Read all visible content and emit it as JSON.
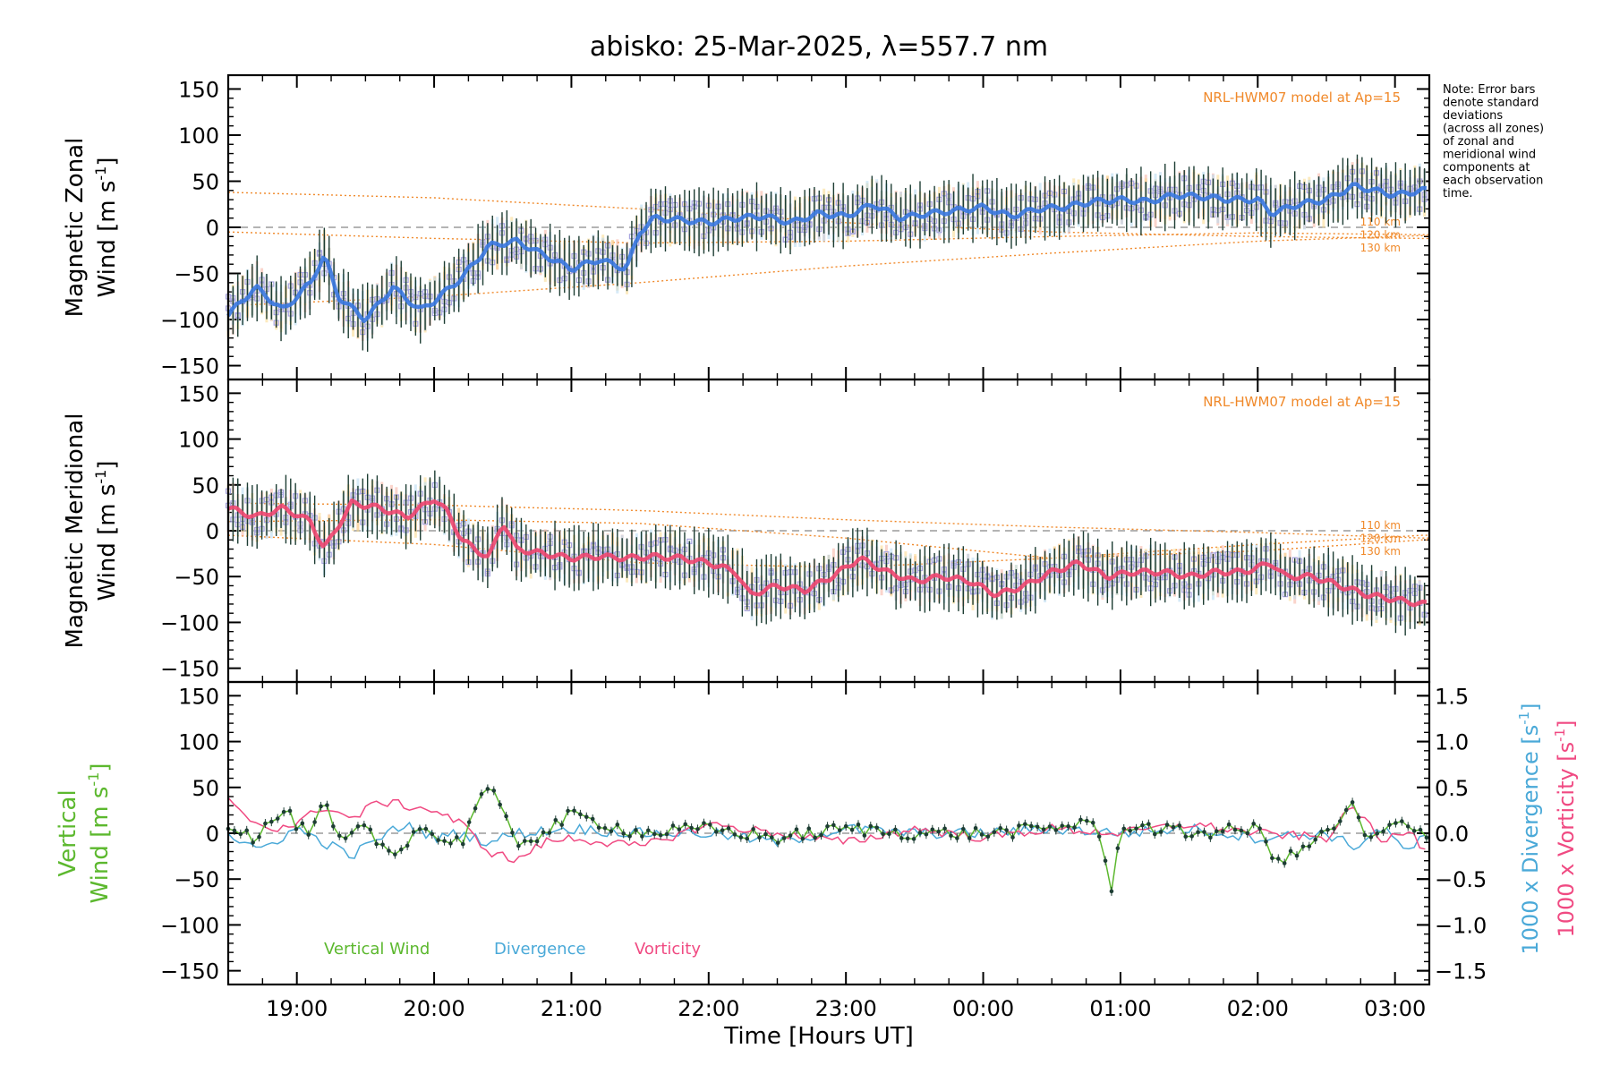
{
  "title": "abisko: 25-Mar-2025, λ=557.7 nm",
  "note_lines": [
    "Note: Error bars",
    "denote standard",
    "deviations",
    "(across all zones)",
    "of zonal and",
    "meridional wind",
    "components at",
    "each observation",
    "time."
  ],
  "colors": {
    "zonal": "#3a78e0",
    "meridional": "#f04670",
    "vertical": "#5cb82e",
    "divergence": "#4aa9d8",
    "vorticity": "#f04a82",
    "model": "#f0892a",
    "scatter": "#a9a6e0",
    "errorbar": "#1d3d33"
  },
  "chart_data": [
    {
      "type": "line",
      "panel": "zonal",
      "ylabel_line1": "Magnetic Zonal",
      "ylabel_line2": "Wind",
      "ylabel_unit": "[m s",
      "ylabel_sup": "-1",
      "ylabel_close": "]",
      "ylim": [
        -165,
        165
      ],
      "yticks": [
        -150,
        -100,
        -50,
        0,
        50,
        100,
        150
      ],
      "model_label": "NRL-HWM07 model at Ap=15",
      "model_altitudes": [
        "110 km",
        "120 km",
        "130 km"
      ],
      "model_curves": [
        {
          "x": [
            18.5,
            20.0,
            21.5,
            23.0,
            24.5,
            26.0,
            27.2
          ],
          "y": [
            38,
            32,
            20,
            5,
            -5,
            -10,
            -12
          ]
        },
        {
          "x": [
            18.5,
            20.0,
            21.5,
            23.0,
            24.5,
            26.0,
            27.2
          ],
          "y": [
            -5,
            -12,
            -17,
            -15,
            -10,
            -6,
            -8
          ]
        },
        {
          "x": [
            18.5,
            20.0,
            21.5,
            23.0,
            24.5,
            26.0,
            27.2
          ],
          "y": [
            -85,
            -75,
            -60,
            -42,
            -28,
            -15,
            -9
          ]
        }
      ],
      "series": [
        {
          "name": "zonal wind",
          "x": [
            18.5,
            18.7,
            18.9,
            19.1,
            19.2,
            19.3,
            19.5,
            19.7,
            19.9,
            20.0,
            20.2,
            20.4,
            20.6,
            20.8,
            21.0,
            21.2,
            21.4,
            21.5,
            21.6,
            21.8,
            22.0,
            22.2,
            22.4,
            22.6,
            22.8,
            23.0,
            23.2,
            23.4,
            23.6,
            23.8,
            24.0,
            24.2,
            24.4,
            24.6,
            24.8,
            25.0,
            25.2,
            25.4,
            25.6,
            25.8,
            26.0,
            26.1,
            26.3,
            26.5,
            26.7,
            27.0,
            27.2
          ],
          "y": [
            -95,
            -65,
            -90,
            -60,
            -30,
            -75,
            -100,
            -65,
            -90,
            -80,
            -55,
            -20,
            -15,
            -30,
            -45,
            -35,
            -45,
            -5,
            10,
            8,
            5,
            10,
            12,
            5,
            15,
            12,
            25,
            10,
            15,
            18,
            22,
            12,
            20,
            22,
            28,
            30,
            28,
            35,
            33,
            30,
            30,
            15,
            25,
            30,
            45,
            35,
            40
          ]
        }
      ]
    },
    {
      "type": "line",
      "panel": "meridional",
      "ylabel_line1": "Magnetic Meridional",
      "ylabel_line2": "Wind",
      "ylabel_unit": "[m s",
      "ylabel_sup": "-1",
      "ylabel_close": "]",
      "ylim": [
        -165,
        165
      ],
      "yticks": [
        -150,
        -100,
        -50,
        0,
        50,
        100,
        150
      ],
      "model_label": "NRL-HWM07 model at Ap=15",
      "model_altitudes": [
        "110 km",
        "120 km",
        "130 km"
      ],
      "model_curves": [
        {
          "x": [
            18.5,
            20.0,
            21.5,
            23.0,
            24.5,
            26.0,
            27.2
          ],
          "y": [
            30,
            28,
            22,
            12,
            4,
            -2,
            -8
          ]
        },
        {
          "x": [
            18.5,
            20.0,
            21.5,
            23.0,
            24.5,
            26.0,
            27.2
          ],
          "y": [
            10,
            12,
            8,
            -8,
            -30,
            -22,
            -10
          ]
        },
        {
          "x": [
            18.5,
            20.0,
            21.5,
            23.0,
            24.5,
            26.0,
            27.2
          ],
          "y": [
            -5,
            -15,
            -35,
            -40,
            -30,
            -15,
            -5
          ]
        }
      ],
      "series": [
        {
          "name": "meridional wind",
          "x": [
            18.5,
            18.7,
            18.9,
            19.1,
            19.2,
            19.4,
            19.6,
            19.8,
            20.0,
            20.1,
            20.2,
            20.4,
            20.5,
            20.6,
            20.8,
            21.0,
            21.2,
            21.4,
            21.6,
            21.8,
            22.0,
            22.2,
            22.3,
            22.5,
            22.7,
            22.9,
            23.1,
            23.3,
            23.5,
            23.7,
            23.9,
            24.1,
            24.3,
            24.5,
            24.7,
            24.9,
            25.1,
            25.3,
            25.5,
            25.7,
            25.9,
            26.1,
            26.2,
            26.4,
            26.6,
            26.8,
            27.0,
            27.2
          ],
          "y": [
            25,
            15,
            25,
            10,
            -20,
            30,
            25,
            15,
            35,
            20,
            -10,
            -30,
            10,
            -20,
            -25,
            -30,
            -28,
            -30,
            -28,
            -30,
            -35,
            -45,
            -70,
            -60,
            -65,
            -50,
            -30,
            -45,
            -55,
            -50,
            -55,
            -70,
            -60,
            -45,
            -35,
            -50,
            -45,
            -45,
            -50,
            -45,
            -45,
            -35,
            -50,
            -50,
            -60,
            -70,
            -75,
            -80
          ]
        }
      ]
    },
    {
      "type": "line",
      "panel": "vertical",
      "ylabel_line1": "Vertical",
      "ylabel_line2": "Wind",
      "ylabel_unit": "[m s",
      "ylabel_sup": "-1",
      "ylabel_close": "]",
      "ylim": [
        -165,
        165
      ],
      "yticks": [
        -150,
        -100,
        -50,
        0,
        50,
        100,
        150
      ],
      "y2lim": [
        -1.65,
        1.65
      ],
      "y2ticks": [
        -1.5,
        -1.0,
        -0.5,
        0.0,
        0.5,
        1.0,
        1.5
      ],
      "y2tick_labels": [
        "−1.5",
        "−1.0",
        "−0.5",
        "0.0",
        "0.5",
        "1.0",
        "1.5"
      ],
      "y2label_div": "1000 x Divergence [s",
      "y2label_vor": "1000 x Vorticity [s",
      "y2label_sup": "-1",
      "y2label_close": "]",
      "xlabel": "Time [Hours UT]",
      "xticks": [
        19,
        20,
        21,
        22,
        23,
        24,
        25,
        26,
        27
      ],
      "xtick_labels": [
        "19:00",
        "20:00",
        "21:00",
        "22:00",
        "23:00",
        "00:00",
        "01:00",
        "02:00",
        "03:00"
      ],
      "xlim": [
        18.5,
        27.25
      ],
      "legend": [
        {
          "label": "Vertical Wind",
          "color_key": "vertical"
        },
        {
          "label": "Divergence",
          "color_key": "divergence"
        },
        {
          "label": "Vorticity",
          "color_key": "vorticity"
        }
      ],
      "series": [
        {
          "name": "vertical wind",
          "x": [
            18.5,
            18.7,
            18.9,
            19.1,
            19.2,
            19.3,
            19.5,
            19.7,
            19.9,
            20.0,
            20.2,
            20.3,
            20.4,
            20.6,
            20.8,
            21.0,
            21.5,
            22.0,
            22.5,
            23.0,
            23.5,
            24.0,
            24.5,
            24.8,
            24.9,
            24.95,
            25.0,
            25.5,
            26.0,
            26.1,
            26.2,
            26.5,
            26.7,
            26.8,
            27.0,
            27.2
          ],
          "y": [
            10,
            -5,
            25,
            -5,
            35,
            -10,
            5,
            -25,
            10,
            -5,
            -10,
            30,
            50,
            -10,
            0,
            20,
            0,
            5,
            -5,
            5,
            0,
            0,
            5,
            15,
            -40,
            -65,
            10,
            0,
            5,
            -20,
            -30,
            0,
            30,
            -10,
            10,
            0
          ]
        },
        {
          "name": "divergence",
          "x": [
            18.5,
            18.7,
            19.0,
            19.2,
            19.4,
            19.6,
            19.8,
            20.0,
            20.2,
            20.4,
            20.6,
            21.0,
            21.5,
            22.0,
            22.5,
            23.0,
            23.5,
            24.0,
            24.5,
            25.0,
            25.5,
            26.0,
            26.5,
            26.7,
            26.9,
            27.1,
            27.2
          ],
          "y": [
            0.0,
            -0.2,
            0.05,
            -0.1,
            -0.25,
            -0.05,
            0.1,
            -0.05,
            0.0,
            -0.1,
            0.0,
            0.05,
            0.0,
            0.0,
            -0.1,
            0.05,
            0.0,
            0.0,
            0.05,
            0.0,
            0.05,
            -0.05,
            0.0,
            -0.15,
            0.05,
            -0.2,
            -0.05
          ]
        },
        {
          "name": "vorticity",
          "x": [
            18.5,
            18.6,
            18.8,
            19.0,
            19.2,
            19.4,
            19.6,
            19.8,
            20.0,
            20.2,
            20.4,
            20.6,
            20.8,
            21.0,
            21.5,
            22.0,
            22.5,
            23.0,
            23.5,
            24.0,
            24.5,
            25.0,
            25.5,
            26.0,
            26.5,
            26.7,
            26.9,
            27.1,
            27.2
          ],
          "y": [
            0.35,
            0.2,
            0.05,
            0.1,
            0.3,
            0.15,
            0.35,
            0.3,
            0.25,
            0.1,
            -0.2,
            -0.3,
            -0.1,
            -0.05,
            -0.15,
            0.1,
            0.0,
            -0.1,
            0.05,
            -0.05,
            0.05,
            0.0,
            0.1,
            0.0,
            -0.05,
            0.3,
            -0.1,
            0.05,
            -0.15
          ]
        }
      ]
    }
  ]
}
